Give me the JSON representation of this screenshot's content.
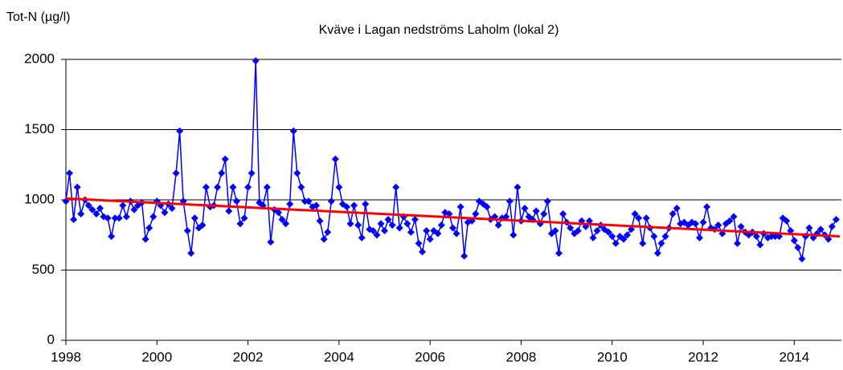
{
  "chart_data": {
    "type": "line",
    "title": "Kväve i Lagan nedströms Laholm (lokal 2)",
    "y_label": "Tot-N (µg/l)",
    "xlim": [
      1998,
      2015
    ],
    "xticks": [
      1998,
      2000,
      2002,
      2004,
      2006,
      2008,
      2010,
      2012,
      2014
    ],
    "ylim": [
      0,
      2000
    ],
    "yticks": [
      0,
      500,
      1000,
      1500,
      2000
    ],
    "grid": true,
    "series": [
      {
        "color": "#0000ff",
        "x": [
          1998,
          1998.08,
          1998.17,
          1998.25,
          1998.33,
          1998.42,
          1998.5,
          1998.58,
          1998.67,
          1998.75,
          1998.83,
          1998.92,
          1999,
          1999.08,
          1999.17,
          1999.25,
          1999.33,
          1999.42,
          1999.5,
          1999.58,
          1999.67,
          1999.75,
          1999.83,
          1999.92,
          2000,
          2000.08,
          2000.17,
          2000.25,
          2000.33,
          2000.42,
          2000.5,
          2000.58,
          2000.67,
          2000.75,
          2000.83,
          2000.92,
          2001,
          2001.08,
          2001.17,
          2001.25,
          2001.33,
          2001.42,
          2001.5,
          2001.58,
          2001.67,
          2001.75,
          2001.83,
          2001.92,
          2002,
          2002.08,
          2002.17,
          2002.25,
          2002.33,
          2002.42,
          2002.5,
          2002.58,
          2002.67,
          2002.75,
          2002.83,
          2002.92,
          2003,
          2003.08,
          2003.17,
          2003.25,
          2003.33,
          2003.42,
          2003.5,
          2003.58,
          2003.67,
          2003.75,
          2003.83,
          2003.92,
          2004,
          2004.08,
          2004.17,
          2004.25,
          2004.33,
          2004.42,
          2004.5,
          2004.58,
          2004.67,
          2004.75,
          2004.83,
          2004.92,
          2005,
          2005.08,
          2005.17,
          2005.25,
          2005.33,
          2005.42,
          2005.5,
          2005.58,
          2005.67,
          2005.75,
          2005.83,
          2005.92,
          2006,
          2006.08,
          2006.17,
          2006.25,
          2006.33,
          2006.42,
          2006.5,
          2006.58,
          2006.67,
          2006.75,
          2006.83,
          2006.92,
          2007,
          2007.08,
          2007.17,
          2007.25,
          2007.33,
          2007.42,
          2007.5,
          2007.58,
          2007.67,
          2007.75,
          2007.83,
          2007.92,
          2008,
          2008.08,
          2008.17,
          2008.25,
          2008.33,
          2008.42,
          2008.5,
          2008.58,
          2008.67,
          2008.75,
          2008.83,
          2008.92,
          2009,
          2009.08,
          2009.17,
          2009.25,
          2009.33,
          2009.42,
          2009.5,
          2009.58,
          2009.67,
          2009.75,
          2009.83,
          2009.92,
          2010,
          2010.08,
          2010.17,
          2010.25,
          2010.33,
          2010.42,
          2010.5,
          2010.58,
          2010.67,
          2010.75,
          2010.83,
          2010.92,
          2011,
          2011.08,
          2011.17,
          2011.25,
          2011.33,
          2011.42,
          2011.5,
          2011.58,
          2011.67,
          2011.75,
          2011.83,
          2011.92,
          2012,
          2012.08,
          2012.17,
          2012.25,
          2012.33,
          2012.42,
          2012.5,
          2012.58,
          2012.67,
          2012.75,
          2012.83,
          2012.92,
          2013,
          2013.08,
          2013.17,
          2013.25,
          2013.33,
          2013.42,
          2013.5,
          2013.58,
          2013.67,
          2013.75,
          2013.83,
          2013.92,
          2014,
          2014.08,
          2014.17,
          2014.25,
          2014.33,
          2014.42,
          2014.5,
          2014.58,
          2014.67,
          2014.75,
          2014.83,
          2014.92
        ],
        "values": [
          990,
          1190,
          860,
          1090,
          900,
          1000,
          960,
          930,
          900,
          940,
          880,
          870,
          740,
          870,
          870,
          960,
          880,
          990,
          930,
          960,
          980,
          720,
          800,
          880,
          990,
          960,
          910,
          970,
          940,
          1190,
          1490,
          990,
          780,
          620,
          870,
          800,
          820,
          1090,
          950,
          960,
          1090,
          1190,
          1290,
          920,
          1090,
          990,
          830,
          870,
          1090,
          1190,
          1990,
          980,
          960,
          1090,
          700,
          930,
          910,
          860,
          830,
          970,
          1490,
          1190,
          1090,
          990,
          990,
          950,
          960,
          850,
          720,
          770,
          990,
          1290,
          1090,
          970,
          950,
          830,
          960,
          820,
          730,
          970,
          790,
          780,
          750,
          830,
          780,
          860,
          820,
          1090,
          800,
          880,
          830,
          770,
          860,
          690,
          630,
          780,
          720,
          780,
          760,
          820,
          910,
          900,
          800,
          760,
          950,
          600,
          840,
          850,
          900,
          990,
          970,
          950,
          860,
          880,
          820,
          870,
          880,
          990,
          750,
          1090,
          850,
          940,
          880,
          860,
          920,
          830,
          900,
          990,
          760,
          780,
          620,
          900,
          840,
          800,
          760,
          780,
          850,
          810,
          850,
          730,
          780,
          820,
          790,
          770,
          740,
          690,
          740,
          720,
          750,
          790,
          900,
          870,
          690,
          870,
          800,
          740,
          620,
          690,
          740,
          800,
          900,
          940,
          830,
          840,
          820,
          840,
          830,
          730,
          840,
          950,
          800,
          790,
          820,
          760,
          830,
          850,
          880,
          690,
          810,
          770,
          750,
          770,
          740,
          680,
          760,
          730,
          740,
          740,
          740,
          870,
          850,
          780,
          710,
          660,
          580,
          740,
          800,
          730,
          760,
          790,
          750,
          720,
          810,
          860
        ]
      }
    ],
    "trend": {
      "color": "#ff0000",
      "x": [
        1998,
        2015
      ],
      "values": [
        1010,
        740
      ]
    }
  }
}
